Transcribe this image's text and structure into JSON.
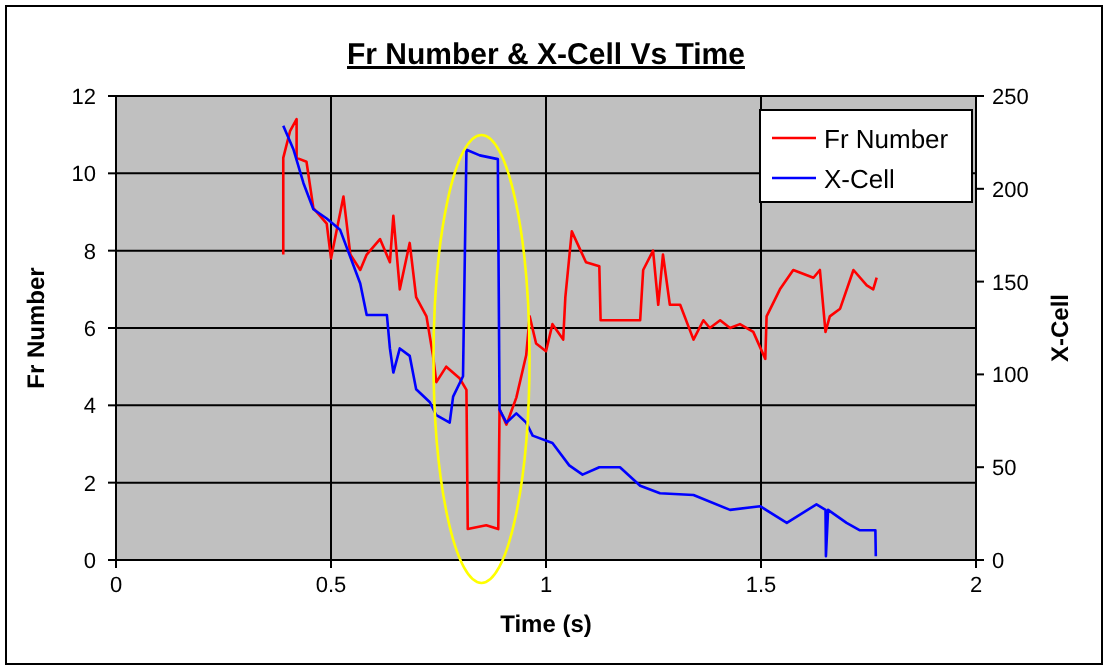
{
  "chart_data": {
    "type": "line",
    "title": "Fr Number & X-Cell Vs Time",
    "xlabel": "Time (s)",
    "ylabel": "Fr Number",
    "y2label": "X-Cell",
    "xlim": [
      0,
      2
    ],
    "xticks": [
      0,
      0.5,
      1,
      1.5,
      2
    ],
    "ylim": [
      0,
      12
    ],
    "yticks": [
      0,
      2,
      4,
      6,
      8,
      10,
      12
    ],
    "y2lim": [
      0,
      250
    ],
    "y2ticks": [
      0,
      50,
      100,
      150,
      200,
      250
    ],
    "grid": true,
    "legend": "top right",
    "marker": "none",
    "line_style": "solid",
    "series": [
      {
        "name": "Fr Number",
        "color": "#ff0000",
        "x": [
          0.389,
          0.389,
          0.405,
          0.42,
          0.42,
          0.443,
          0.459,
          0.49,
          0.5,
          0.529,
          0.545,
          0.568,
          0.583,
          0.614,
          0.637,
          0.645,
          0.66,
          0.683,
          0.698,
          0.722,
          0.737,
          0.745,
          0.768,
          0.799,
          0.815,
          0.818,
          0.861,
          0.889,
          0.892,
          0.908,
          0.931,
          0.954,
          0.962,
          0.977,
          1.0,
          1.015,
          1.04,
          1.045,
          1.06,
          1.093,
          1.124,
          1.127,
          1.172,
          1.219,
          1.226,
          1.249,
          1.261,
          1.272,
          1.288,
          1.312,
          1.343,
          1.366,
          1.381,
          1.405,
          1.428,
          1.451,
          1.482,
          1.51,
          1.513,
          1.544,
          1.575,
          1.622,
          1.637,
          1.65,
          1.66,
          1.684,
          1.715,
          1.746,
          1.761,
          1.769
        ],
        "values": [
          7.9,
          10.4,
          11.1,
          11.4,
          10.4,
          10.3,
          9.1,
          8.7,
          7.8,
          9.4,
          7.9,
          7.5,
          7.9,
          8.3,
          7.7,
          8.9,
          7,
          8.2,
          6.8,
          6.3,
          5.3,
          4.6,
          5,
          4.7,
          4.4,
          0.8,
          0.9,
          0.8,
          3.9,
          3.5,
          4.2,
          5.3,
          6.3,
          5.6,
          5.4,
          6.1,
          5.7,
          6.8,
          8.5,
          7.7,
          7.6,
          6.2,
          6.2,
          6.2,
          7.5,
          8,
          6.6,
          7.9,
          6.6,
          6.6,
          5.7,
          6.2,
          6,
          6.2,
          6,
          6.1,
          5.9,
          5.2,
          6.3,
          7,
          7.5,
          7.3,
          7.5,
          5.9,
          6.3,
          6.5,
          7.5,
          7.1,
          7,
          7.3
        ]
      },
      {
        "name": "X-Cell",
        "color": "#0000ff",
        "axis": "y2",
        "x": [
          0.389,
          0.413,
          0.436,
          0.459,
          0.49,
          0.521,
          0.568,
          0.583,
          0.63,
          0.637,
          0.645,
          0.66,
          0.683,
          0.698,
          0.73,
          0.745,
          0.776,
          0.784,
          0.807,
          0.815,
          0.846,
          0.888,
          0.892,
          0.908,
          0.931,
          0.954,
          0.969,
          1.015,
          1.054,
          1.085,
          1.124,
          1.172,
          1.219,
          1.265,
          1.343,
          1.428,
          1.498,
          1.56,
          1.629,
          1.65,
          1.651,
          1.656,
          1.699,
          1.73,
          1.766,
          1.767
        ],
        "values": [
          234,
          221,
          203,
          189,
          184,
          178,
          149,
          132,
          132,
          114,
          101,
          114,
          110,
          92,
          85,
          78,
          74,
          88,
          99,
          221,
          218,
          216,
          81,
          74,
          79,
          74,
          67,
          63,
          51,
          46,
          50,
          50,
          40,
          36,
          35,
          27,
          29,
          20,
          30,
          27,
          2,
          27,
          20,
          16,
          16,
          2
        ]
      }
    ]
  }
}
